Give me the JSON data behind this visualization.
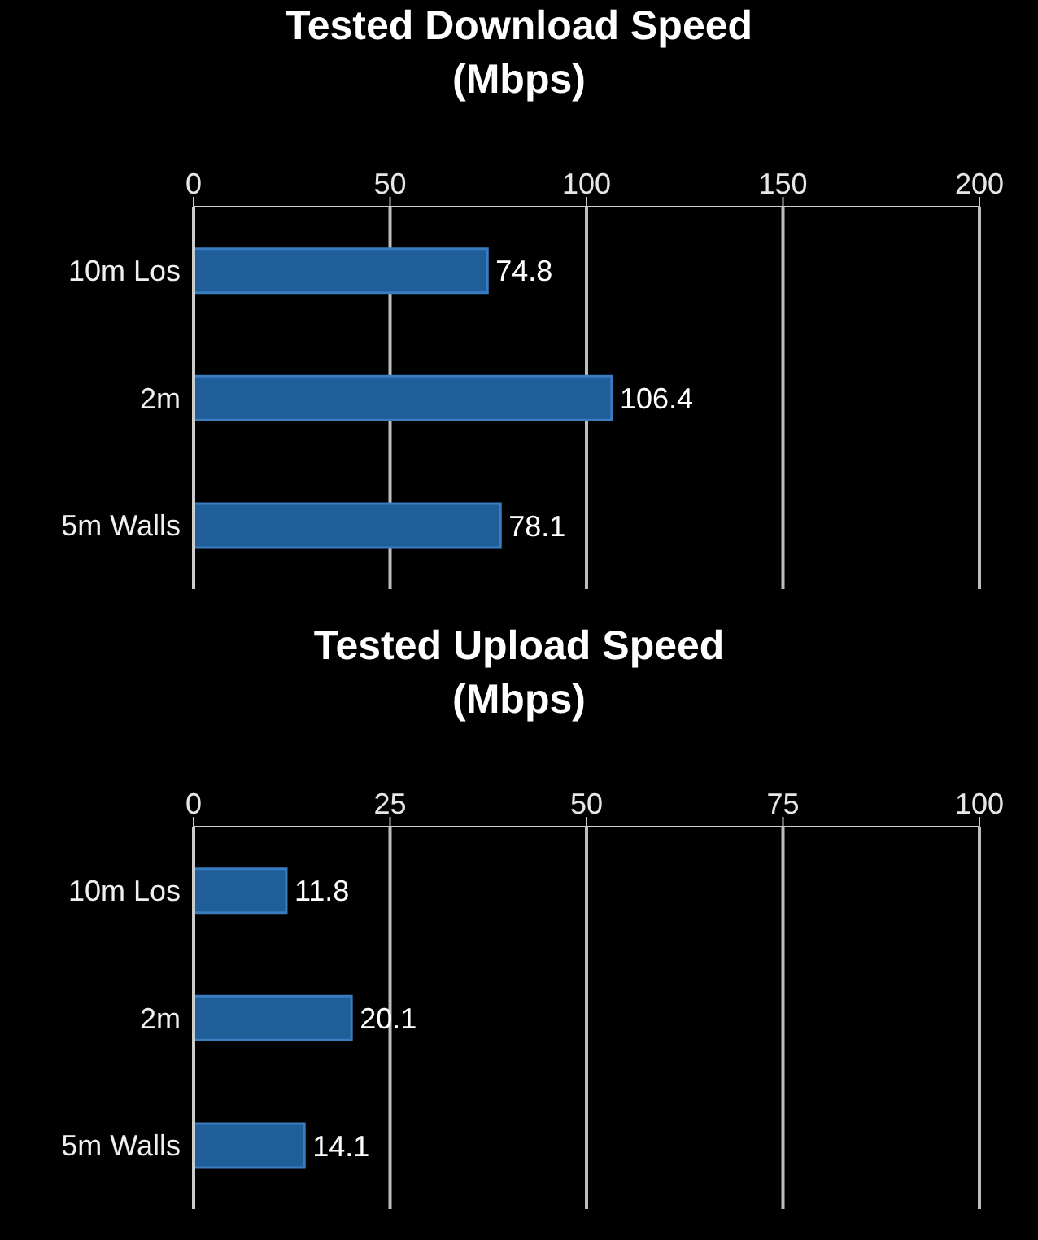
{
  "chart_data": [
    {
      "type": "bar",
      "orientation": "horizontal",
      "title": "Tested Download Speed\n(Mbps)",
      "categories": [
        "10m Los",
        "2m",
        "5m Walls"
      ],
      "values": [
        74.8,
        106.4,
        78.1
      ],
      "color": "#1f5e98",
      "xlim": [
        0,
        200
      ],
      "xticks": [
        0,
        50,
        100,
        150,
        200
      ],
      "grid": "x",
      "data_labels": true
    },
    {
      "type": "bar",
      "orientation": "horizontal",
      "title": "Tested Upload Speed\n(Mbps)",
      "categories": [
        "10m Los",
        "2m",
        "5m Walls"
      ],
      "values": [
        11.8,
        20.1,
        14.1
      ],
      "color": "#1f5e98",
      "xlim": [
        0,
        100
      ],
      "xticks": [
        0,
        25,
        50,
        75,
        100
      ],
      "grid": "x",
      "data_labels": true
    }
  ]
}
